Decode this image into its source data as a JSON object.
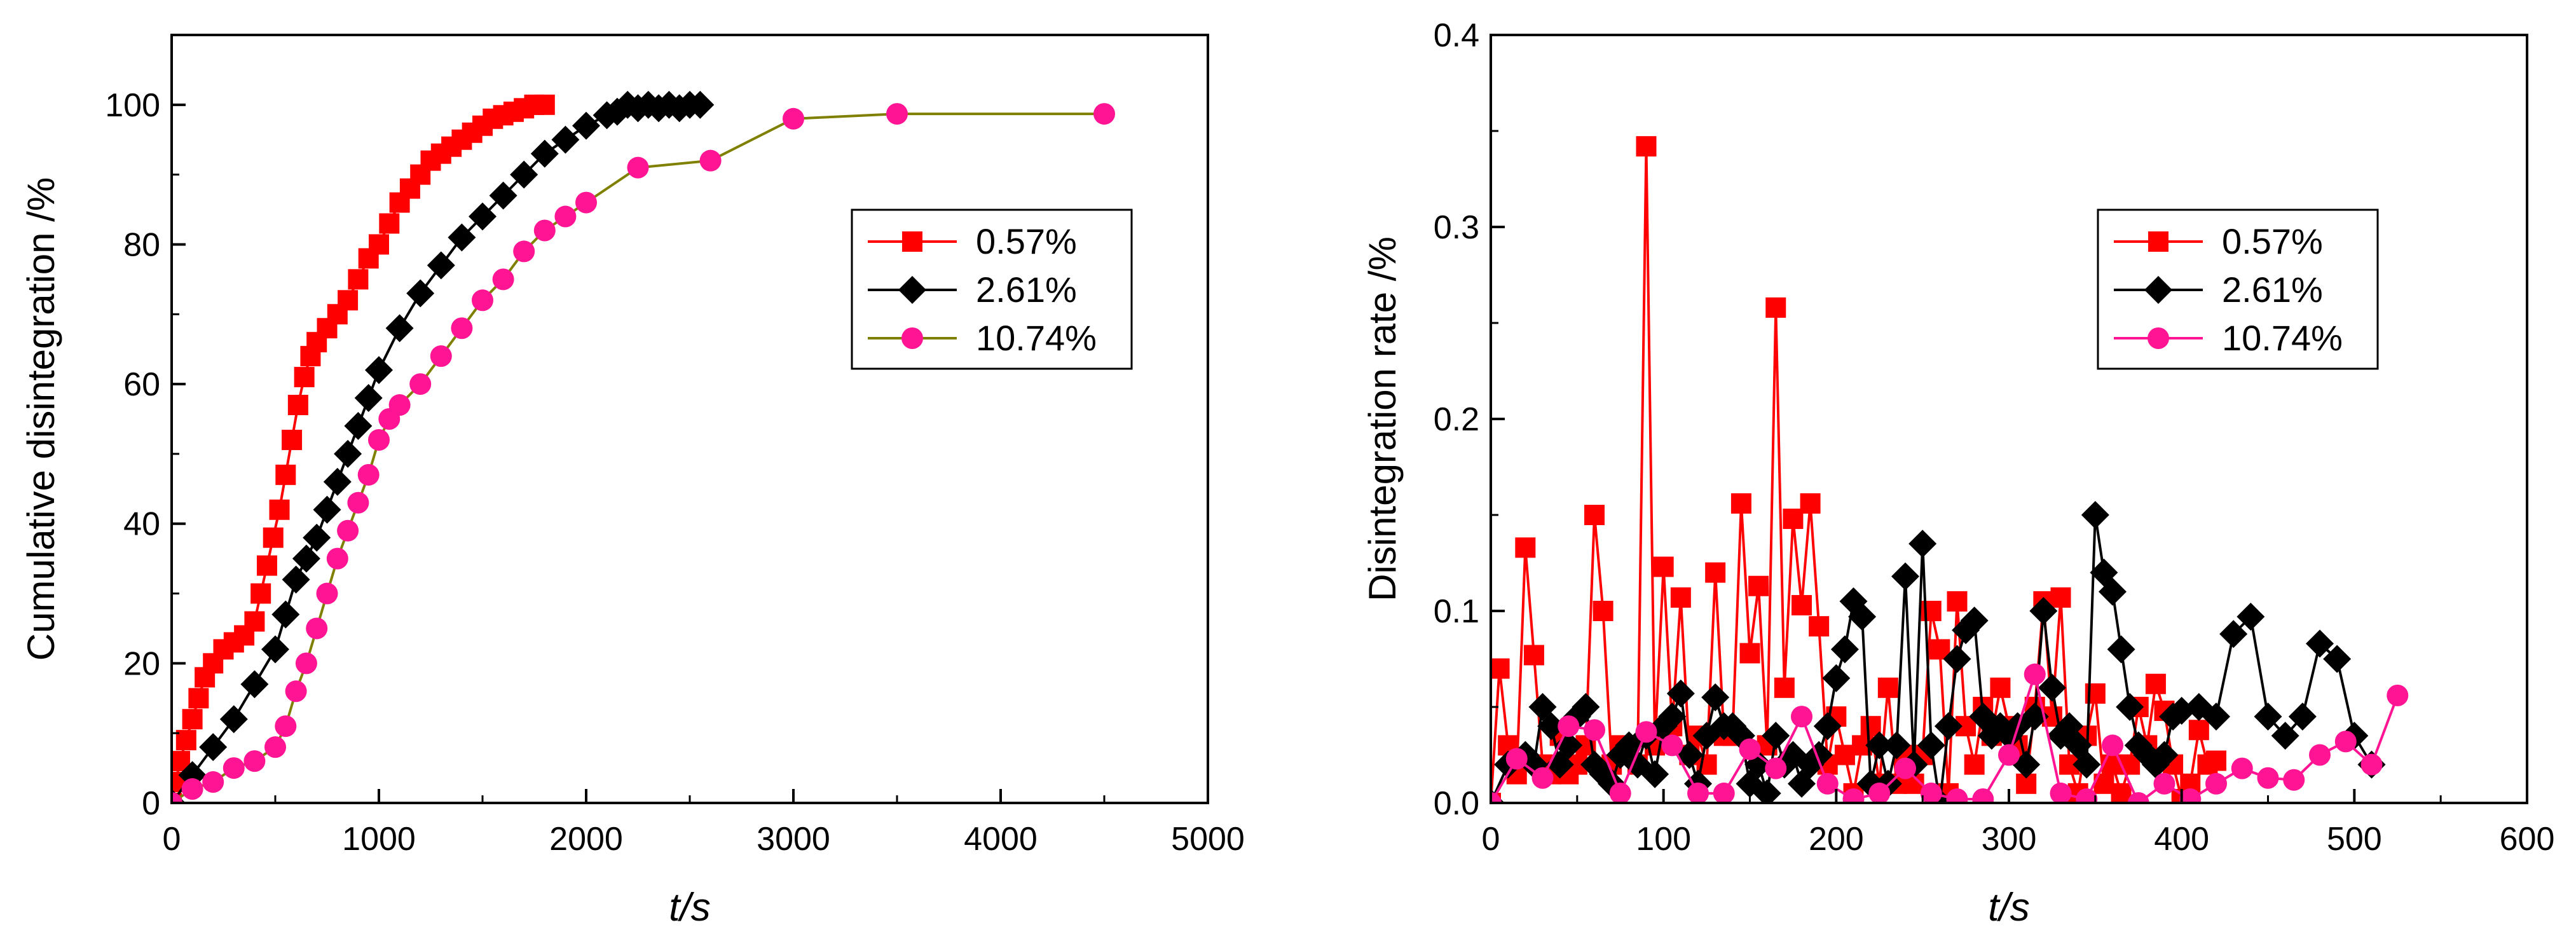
{
  "chart_data": [
    {
      "type": "line",
      "id": "left",
      "title": "",
      "xlabel_italic": "t",
      "xlabel_rest": "/s",
      "ylabel": "Cumulative disintegration /%",
      "xlim": [
        0,
        5000
      ],
      "ylim": [
        0,
        110
      ],
      "xticks": [
        0,
        1000,
        2000,
        3000,
        4000,
        5000
      ],
      "yticks": [
        0,
        20,
        40,
        60,
        80,
        100
      ],
      "legend_position": "upper-right",
      "series": [
        {
          "name": "0.57%",
          "color": "#ff0000",
          "marker": "square",
          "x": [
            0,
            20,
            40,
            70,
            100,
            130,
            160,
            200,
            250,
            300,
            350,
            400,
            430,
            460,
            490,
            520,
            550,
            580,
            610,
            640,
            670,
            700,
            750,
            800,
            850,
            900,
            950,
            1000,
            1050,
            1100,
            1150,
            1200,
            1250,
            1300,
            1350,
            1400,
            1450,
            1500,
            1550,
            1600,
            1650,
            1700,
            1750,
            1800
          ],
          "y": [
            0,
            3,
            6,
            9,
            12,
            15,
            18,
            20,
            22,
            23,
            24,
            26,
            30,
            34,
            38,
            42,
            47,
            52,
            57,
            61,
            64,
            66,
            68,
            70,
            72,
            75,
            78,
            80,
            83,
            86,
            88,
            90,
            92,
            93,
            94,
            95,
            96,
            97,
            98,
            98.5,
            99,
            99.5,
            100,
            100
          ]
        },
        {
          "name": "2.61%",
          "color": "#000000",
          "marker": "diamond",
          "x": [
            0,
            100,
            200,
            300,
            400,
            500,
            550,
            600,
            650,
            700,
            750,
            800,
            850,
            900,
            950,
            1000,
            1100,
            1200,
            1300,
            1400,
            1500,
            1600,
            1700,
            1800,
            1900,
            2000,
            2100,
            2150,
            2200,
            2250,
            2300,
            2350,
            2400,
            2450,
            2500,
            2550
          ],
          "y": [
            0,
            4,
            8,
            12,
            17,
            22,
            27,
            32,
            35,
            38,
            42,
            46,
            50,
            54,
            58,
            62,
            68,
            73,
            77,
            81,
            84,
            87,
            90,
            93,
            95,
            97,
            98.5,
            99,
            100,
            99.5,
            100,
            99.5,
            100,
            99.5,
            100,
            100
          ]
        },
        {
          "name": "10.74%",
          "color": "#ff1493",
          "marker": "circle",
          "line_color": "#808000",
          "x": [
            0,
            100,
            200,
            300,
            400,
            500,
            550,
            600,
            650,
            700,
            750,
            800,
            850,
            900,
            950,
            1000,
            1050,
            1100,
            1200,
            1300,
            1400,
            1500,
            1600,
            1700,
            1800,
            1900,
            2000,
            2250,
            2600,
            3000,
            3500,
            4500
          ],
          "y": [
            0,
            2,
            3,
            5,
            6,
            8,
            11,
            16,
            20,
            25,
            30,
            35,
            39,
            43,
            47,
            52,
            55,
            57,
            60,
            64,
            68,
            72,
            75,
            79,
            82,
            84,
            86,
            91,
            92,
            98,
            98.7,
            98.7
          ]
        }
      ]
    },
    {
      "type": "line",
      "id": "right",
      "title": "",
      "xlabel_italic": "t",
      "xlabel_rest": "/s",
      "ylabel": "Disintegration rate /%",
      "xlim": [
        0,
        600
      ],
      "ylim": [
        0,
        0.4
      ],
      "xticks": [
        0,
        100,
        200,
        300,
        400,
        500,
        600
      ],
      "yticks": [
        0.0,
        0.1,
        0.2,
        0.3,
        0.4
      ],
      "yticklabels": [
        "0.0",
        "0.1",
        "0.2",
        "0.3",
        "0.4"
      ],
      "legend_position": "upper-right",
      "series": [
        {
          "name": "0.57%",
          "color": "#ff0000",
          "marker": "square",
          "x": [
            0,
            5,
            10,
            15,
            20,
            25,
            30,
            35,
            40,
            45,
            50,
            55,
            60,
            65,
            70,
            75,
            80,
            85,
            90,
            95,
            100,
            105,
            110,
            115,
            120,
            125,
            130,
            135,
            140,
            145,
            150,
            155,
            160,
            165,
            170,
            175,
            180,
            185,
            190,
            195,
            200,
            205,
            210,
            215,
            220,
            225,
            230,
            235,
            240,
            245,
            250,
            255,
            260,
            265,
            270,
            275,
            280,
            285,
            290,
            295,
            300,
            305,
            310,
            315,
            320,
            325,
            330,
            335,
            340,
            345,
            350,
            355,
            360,
            365,
            370,
            375,
            380,
            385,
            390,
            395,
            400,
            405,
            410,
            415,
            420
          ],
          "y": [
            0,
            0.07,
            0.03,
            0.015,
            0.133,
            0.077,
            0.02,
            0.015,
            0.035,
            0.015,
            0.02,
            0.03,
            0.15,
            0.1,
            0.02,
            0.03,
            0.025,
            0.02,
            0.342,
            0.03,
            0.123,
            0.04,
            0.107,
            0.025,
            0.035,
            0.02,
            0.12,
            0.035,
            0.035,
            0.156,
            0.078,
            0.113,
            0.03,
            0.258,
            0.06,
            0.148,
            0.103,
            0.156,
            0.092,
            0.02,
            0.045,
            0.025,
            0.005,
            0.03,
            0.04,
            0.01,
            0.06,
            0.01,
            0.025,
            0.01,
            0.025,
            0.1,
            0.08,
            0.005,
            0.105,
            0.04,
            0.02,
            0.05,
            0.035,
            0.06,
            0.04,
            0.03,
            0.01,
            0.05,
            0.105,
            0.045,
            0.107,
            0.02,
            0.005,
            0.035,
            0.057,
            0.01,
            0.02,
            0.005,
            0.02,
            0.05,
            0.03,
            0.062,
            0.048,
            0.02,
            0.002,
            0.01,
            0.038,
            0.02,
            0.022
          ]
        },
        {
          "name": "2.61%",
          "color": "#000000",
          "marker": "diamond",
          "x": [
            0,
            10,
            20,
            25,
            30,
            35,
            40,
            45,
            50,
            55,
            60,
            65,
            70,
            75,
            80,
            85,
            90,
            95,
            100,
            105,
            110,
            115,
            120,
            125,
            130,
            135,
            140,
            145,
            150,
            155,
            160,
            165,
            170,
            175,
            180,
            185,
            190,
            195,
            200,
            205,
            210,
            215,
            220,
            225,
            230,
            235,
            240,
            245,
            250,
            255,
            260,
            265,
            270,
            275,
            280,
            285,
            290,
            295,
            300,
            305,
            310,
            315,
            320,
            325,
            330,
            335,
            340,
            345,
            350,
            355,
            360,
            365,
            370,
            375,
            380,
            385,
            390,
            395,
            400,
            410,
            420,
            430,
            440,
            450,
            460,
            470,
            480,
            490,
            500,
            510
          ],
          "y": [
            0,
            0.02,
            0.025,
            0.02,
            0.05,
            0.04,
            0.02,
            0.03,
            0.045,
            0.05,
            0.02,
            0.015,
            0.01,
            0.025,
            0.03,
            0.02,
            0.035,
            0.015,
            0.04,
            0.045,
            0.057,
            0.025,
            0.01,
            0.035,
            0.055,
            0.04,
            0.04,
            0.035,
            0.01,
            0.02,
            0.005,
            0.035,
            0.02,
            0.025,
            0.01,
            0.02,
            0.025,
            0.04,
            0.065,
            0.08,
            0.105,
            0.097,
            0.01,
            0.03,
            0.01,
            0.03,
            0.118,
            0.02,
            0.135,
            0.03,
            0,
            0.04,
            0.075,
            0.09,
            0.095,
            0.045,
            0.035,
            0.04,
            0.035,
            0.04,
            0.02,
            0.045,
            0.1,
            0.06,
            0.035,
            0.04,
            0.03,
            0.02,
            0.15,
            0.12,
            0.11,
            0.08,
            0.05,
            0.03,
            0.025,
            0.02,
            0.025,
            0.045,
            0.048,
            0.05,
            0.045,
            0.088,
            0.097,
            0.045,
            0.035,
            0.045,
            0.083,
            0.075,
            0.035,
            0.02
          ]
        },
        {
          "name": "10.74%",
          "color": "#ff1493",
          "marker": "circle",
          "line_color": "#ff1493",
          "x": [
            0,
            15,
            30,
            45,
            60,
            75,
            90,
            105,
            120,
            135,
            150,
            165,
            180,
            195,
            210,
            225,
            240,
            255,
            270,
            285,
            300,
            315,
            330,
            345,
            360,
            375,
            390,
            405,
            420,
            435,
            450,
            465,
            480,
            495,
            510,
            525
          ],
          "y": [
            0,
            0.023,
            0.013,
            0.04,
            0.038,
            0.005,
            0.037,
            0.03,
            0.005,
            0.005,
            0.028,
            0.018,
            0.045,
            0.01,
            0.002,
            0.005,
            0.018,
            0.005,
            0.002,
            0.002,
            0.025,
            0.067,
            0.005,
            0.002,
            0.03,
            0.0,
            0.01,
            0.002,
            0.01,
            0.018,
            0.013,
            0.012,
            0.025,
            0.032,
            0.02,
            0.056
          ]
        }
      ]
    }
  ]
}
